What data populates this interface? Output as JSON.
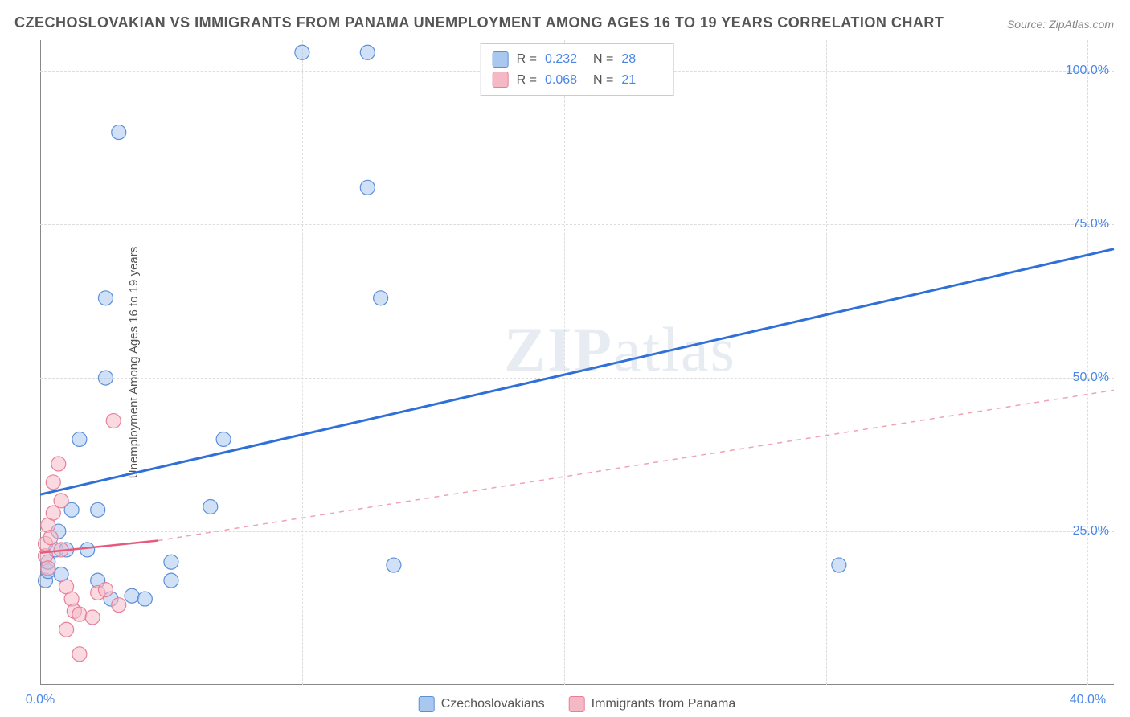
{
  "title": "CZECHOSLOVAKIAN VS IMMIGRANTS FROM PANAMA UNEMPLOYMENT AMONG AGES 16 TO 19 YEARS CORRELATION CHART",
  "source": "Source: ZipAtlas.com",
  "watermark_zip": "ZIP",
  "watermark_atlas": "atlas",
  "chart": {
    "type": "scatter",
    "y_axis_label": "Unemployment Among Ages 16 to 19 years",
    "xlim": [
      0,
      41
    ],
    "ylim": [
      0,
      105
    ],
    "x_ticks": [
      {
        "v": 0,
        "label": "0.0%"
      },
      {
        "v": 40,
        "label": "40.0%"
      }
    ],
    "x_grid": [
      0,
      10,
      20,
      30,
      40
    ],
    "y_ticks": [
      {
        "v": 25,
        "label": "25.0%"
      },
      {
        "v": 50,
        "label": "50.0%"
      },
      {
        "v": 75,
        "label": "75.0%"
      },
      {
        "v": 100,
        "label": "100.0%"
      }
    ],
    "y_grid": [
      25,
      50,
      75,
      100
    ],
    "background_color": "#ffffff",
    "grid_color": "#dddddd",
    "axis_color": "#888888",
    "tick_label_color": "#4a86e8",
    "marker_radius": 9,
    "marker_opacity": 0.55,
    "series": [
      {
        "name": "Czechoslovakians",
        "color_fill": "#a9c8f0",
        "color_stroke": "#5b8fd6",
        "R": "0.232",
        "N": "28",
        "points": [
          [
            0.2,
            17.0
          ],
          [
            0.3,
            18.5
          ],
          [
            0.3,
            20.0
          ],
          [
            0.6,
            22.0
          ],
          [
            0.7,
            25.0
          ],
          [
            0.8,
            18.0
          ],
          [
            1.0,
            22.0
          ],
          [
            1.2,
            28.5
          ],
          [
            1.5,
            40.0
          ],
          [
            1.8,
            22.0
          ],
          [
            2.2,
            28.5
          ],
          [
            2.2,
            17.0
          ],
          [
            2.5,
            50.0
          ],
          [
            2.5,
            63.0
          ],
          [
            2.7,
            14.0
          ],
          [
            3.0,
            90.0
          ],
          [
            3.5,
            14.5
          ],
          [
            4.0,
            14.0
          ],
          [
            5.0,
            20.0
          ],
          [
            5.0,
            17.0
          ],
          [
            6.5,
            29.0
          ],
          [
            7.0,
            40.0
          ],
          [
            10.0,
            103.0
          ],
          [
            12.5,
            103.0
          ],
          [
            12.5,
            81.0
          ],
          [
            13.0,
            63.0
          ],
          [
            13.5,
            19.5
          ],
          [
            30.5,
            19.5
          ]
        ],
        "trend": {
          "x1": 0,
          "y1": 31,
          "x2": 41,
          "y2": 71,
          "width": 3,
          "dash": "none",
          "color": "#2f6fd8"
        }
      },
      {
        "name": "Immigrants from Panama",
        "color_fill": "#f5b9c6",
        "color_stroke": "#e87f9a",
        "R": "0.068",
        "N": "21",
        "points": [
          [
            0.2,
            21.0
          ],
          [
            0.2,
            23.0
          ],
          [
            0.3,
            19.0
          ],
          [
            0.3,
            26.0
          ],
          [
            0.4,
            24.0
          ],
          [
            0.5,
            28.0
          ],
          [
            0.5,
            33.0
          ],
          [
            0.7,
            36.0
          ],
          [
            0.8,
            30.0
          ],
          [
            0.8,
            22.0
          ],
          [
            1.0,
            16.0
          ],
          [
            1.0,
            9.0
          ],
          [
            1.2,
            14.0
          ],
          [
            1.3,
            12.0
          ],
          [
            1.5,
            11.5
          ],
          [
            1.5,
            5.0
          ],
          [
            2.0,
            11.0
          ],
          [
            2.2,
            15.0
          ],
          [
            2.5,
            15.5
          ],
          [
            2.8,
            43.0
          ],
          [
            3.0,
            13.0
          ]
        ],
        "trend_solid": {
          "x1": 0,
          "y1": 21.5,
          "x2": 4.5,
          "y2": 23.5,
          "width": 2.5,
          "color": "#e65a7e"
        },
        "trend_dash": {
          "x1": 4.5,
          "y1": 23.5,
          "x2": 41,
          "y2": 48,
          "width": 1.5,
          "color": "#f0a3b3"
        }
      }
    ],
    "legend_top": {
      "rows": [
        {
          "swatch_fill": "#a9c8f0",
          "swatch_stroke": "#5b8fd6",
          "r_label": "R  =",
          "r_val": "0.232",
          "n_label": "N  =",
          "n_val": "28"
        },
        {
          "swatch_fill": "#f5b9c6",
          "swatch_stroke": "#e87f9a",
          "r_label": "R  =",
          "r_val": "0.068",
          "n_label": "N  =",
          "n_val": "21"
        }
      ]
    },
    "legend_bottom": [
      {
        "swatch_fill": "#a9c8f0",
        "swatch_stroke": "#5b8fd6",
        "label": "Czechoslovakians"
      },
      {
        "swatch_fill": "#f5b9c6",
        "swatch_stroke": "#e87f9a",
        "label": "Immigrants from Panama"
      }
    ]
  }
}
